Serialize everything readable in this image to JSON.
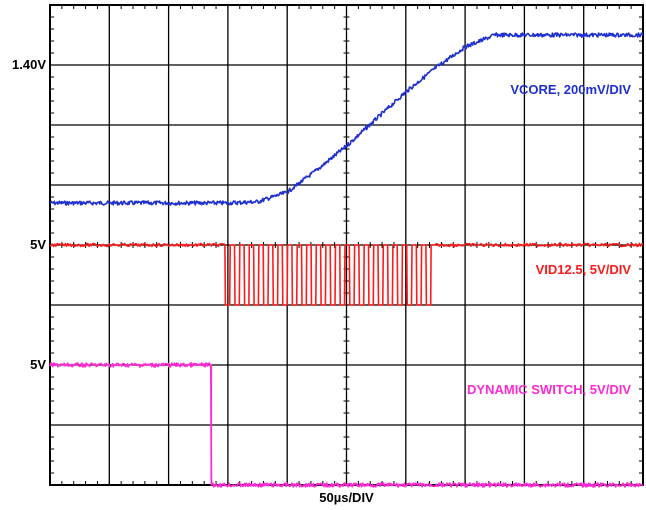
{
  "chart_data": {
    "type": "line",
    "title": "",
    "xlabel": "50µs/DIV",
    "x_divisions": 10,
    "y_divisions": 8,
    "xlim": [
      0,
      10
    ],
    "ylim": [
      0,
      8
    ],
    "grid": true,
    "level_labels": [
      {
        "text": "1.40V",
        "y_div": 7
      },
      {
        "text": "5V",
        "y_div": 4
      },
      {
        "text": "5V",
        "y_div": 2
      }
    ],
    "series": [
      {
        "name": "VCORE, 200mV/DIV",
        "color": "#1f2fd0",
        "label_y_div": 6.6,
        "x": [
          0,
          1,
          2,
          3,
          3.5,
          4,
          4.5,
          5,
          5.5,
          6,
          6.5,
          7,
          7.5,
          8,
          9,
          10
        ],
        "y": [
          4.7,
          4.7,
          4.7,
          4.7,
          4.72,
          4.88,
          5.25,
          5.65,
          6.1,
          6.55,
          6.95,
          7.3,
          7.5,
          7.5,
          7.5,
          7.5
        ]
      },
      {
        "name": "VID12.5, 5V/DIV",
        "color": "#ff1a1a",
        "label_y_div": 3.6,
        "segments": [
          {
            "kind": "flat",
            "x": [
              0,
              2.95
            ],
            "y": 4
          },
          {
            "kind": "square",
            "x": [
              2.95,
              6.5
            ],
            "y_high": 4,
            "y_low": 3,
            "cycles": 22
          },
          {
            "kind": "flat",
            "x": [
              6.5,
              10
            ],
            "y": 4
          }
        ]
      },
      {
        "name": "DYNAMIC SWITCH, 5V/DIV",
        "color": "#ff2ad4",
        "label_y_div": 1.6,
        "x": [
          0,
          2.72,
          2.72,
          10
        ],
        "y": [
          2,
          2,
          0,
          0
        ]
      }
    ]
  }
}
